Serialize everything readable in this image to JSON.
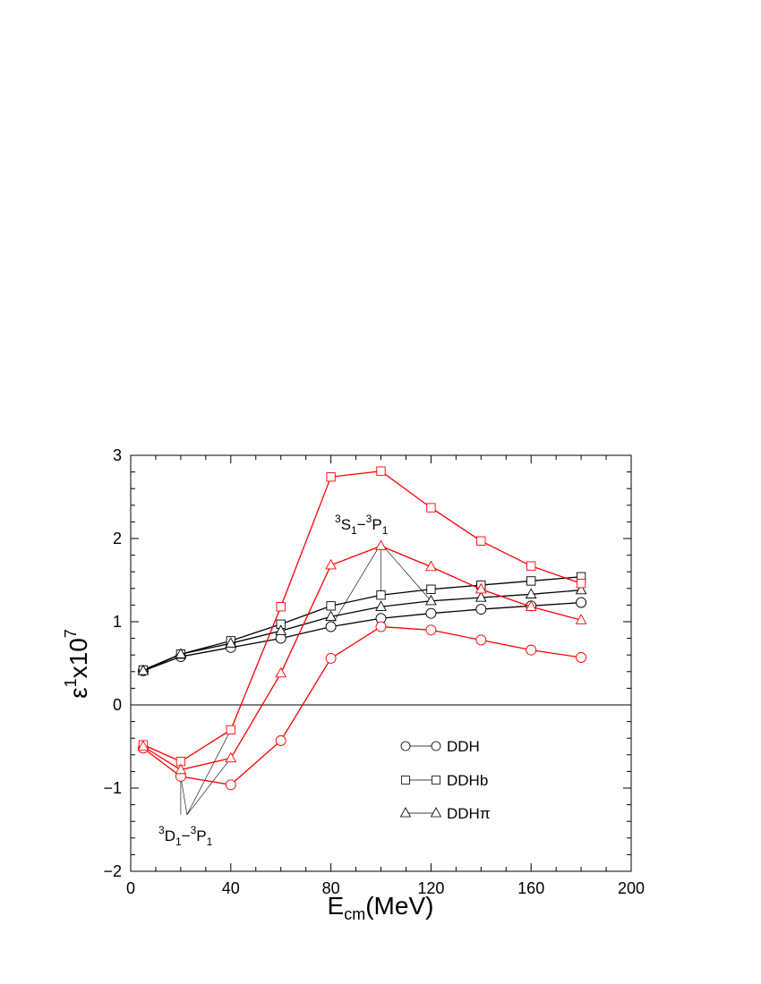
{
  "chart_data": {
    "type": "line",
    "xlabel": {
      "main": "E",
      "sub": "cm",
      "rest": "(MeV)"
    },
    "ylabel": {
      "main": "ε",
      "sup1": "1",
      "mid": "x10",
      "sup2": "7"
    },
    "xlim": [
      0,
      200
    ],
    "ylim": [
      -2,
      3
    ],
    "xticks": [
      0,
      40,
      80,
      120,
      160,
      200
    ],
    "yticks": [
      -2,
      -1,
      0,
      1,
      2,
      3
    ],
    "xtick_labels": [
      "0",
      "40",
      "80",
      "120",
      "160",
      "200"
    ],
    "ytick_labels": [
      "−2",
      "−1",
      "0",
      "1",
      "2",
      "3"
    ],
    "grid": false,
    "zero_line": true,
    "legend": {
      "placement": "lower-right",
      "items": [
        {
          "label": "DDH",
          "marker": "circle"
        },
        {
          "label": "DDHb",
          "marker": "square"
        },
        {
          "label": "DDHπ",
          "marker": "triangle"
        }
      ]
    },
    "annotations": [
      {
        "id": "s",
        "text": {
          "a": "3",
          "b": "S",
          "c": "1",
          "d": "−",
          "e": "3",
          "f": "P",
          "g": "1"
        }
      },
      {
        "id": "d",
        "text": {
          "a": "3",
          "b": "D",
          "c": "1",
          "d": "−",
          "e": "3",
          "f": "P",
          "g": "1"
        }
      }
    ],
    "series": [
      {
        "group": "3S1-3P1",
        "model": "DDH",
        "marker": "circle",
        "color": "#000000",
        "x": [
          5,
          20,
          40,
          60,
          80,
          100,
          120,
          140,
          160,
          180
        ],
        "y": [
          0.41,
          0.58,
          0.69,
          0.8,
          0.94,
          1.04,
          1.1,
          1.15,
          1.19,
          1.23
        ]
      },
      {
        "group": "3S1-3P1",
        "model": "DDHb",
        "marker": "square",
        "color": "#000000",
        "x": [
          5,
          20,
          40,
          60,
          80,
          100,
          120,
          140,
          160,
          180
        ],
        "y": [
          0.42,
          0.61,
          0.77,
          0.97,
          1.19,
          1.32,
          1.39,
          1.44,
          1.49,
          1.54
        ]
      },
      {
        "group": "3S1-3P1",
        "model": "DDHπ",
        "marker": "triangle",
        "color": "#000000",
        "x": [
          5,
          20,
          40,
          60,
          80,
          100,
          120,
          140,
          160,
          180
        ],
        "y": [
          0.41,
          0.61,
          0.74,
          0.89,
          1.06,
          1.18,
          1.25,
          1.29,
          1.33,
          1.38
        ]
      },
      {
        "group": "3D1-3P1",
        "model": "DDH",
        "marker": "circle",
        "color": "#ff0000",
        "x": [
          5,
          20,
          40,
          60,
          80,
          100,
          120,
          140,
          160,
          180
        ],
        "y": [
          -0.52,
          -0.86,
          -0.96,
          -0.43,
          0.56,
          0.94,
          0.9,
          0.78,
          0.66,
          0.57
        ]
      },
      {
        "group": "3D1-3P1",
        "model": "DDHb",
        "marker": "square",
        "color": "#ff0000",
        "x": [
          5,
          20,
          40,
          60,
          80,
          100,
          120,
          140,
          160,
          180
        ],
        "y": [
          -0.48,
          -0.68,
          -0.3,
          1.18,
          2.74,
          2.81,
          2.37,
          1.97,
          1.67,
          1.46
        ]
      },
      {
        "group": "3D1-3P1",
        "model": "DDHπ",
        "marker": "triangle",
        "color": "#ff0000",
        "x": [
          5,
          20,
          40,
          60,
          80,
          100,
          120,
          140,
          160,
          180
        ],
        "y": [
          -0.5,
          -0.78,
          -0.64,
          0.38,
          1.68,
          1.91,
          1.66,
          1.39,
          1.18,
          1.02
        ]
      }
    ]
  }
}
